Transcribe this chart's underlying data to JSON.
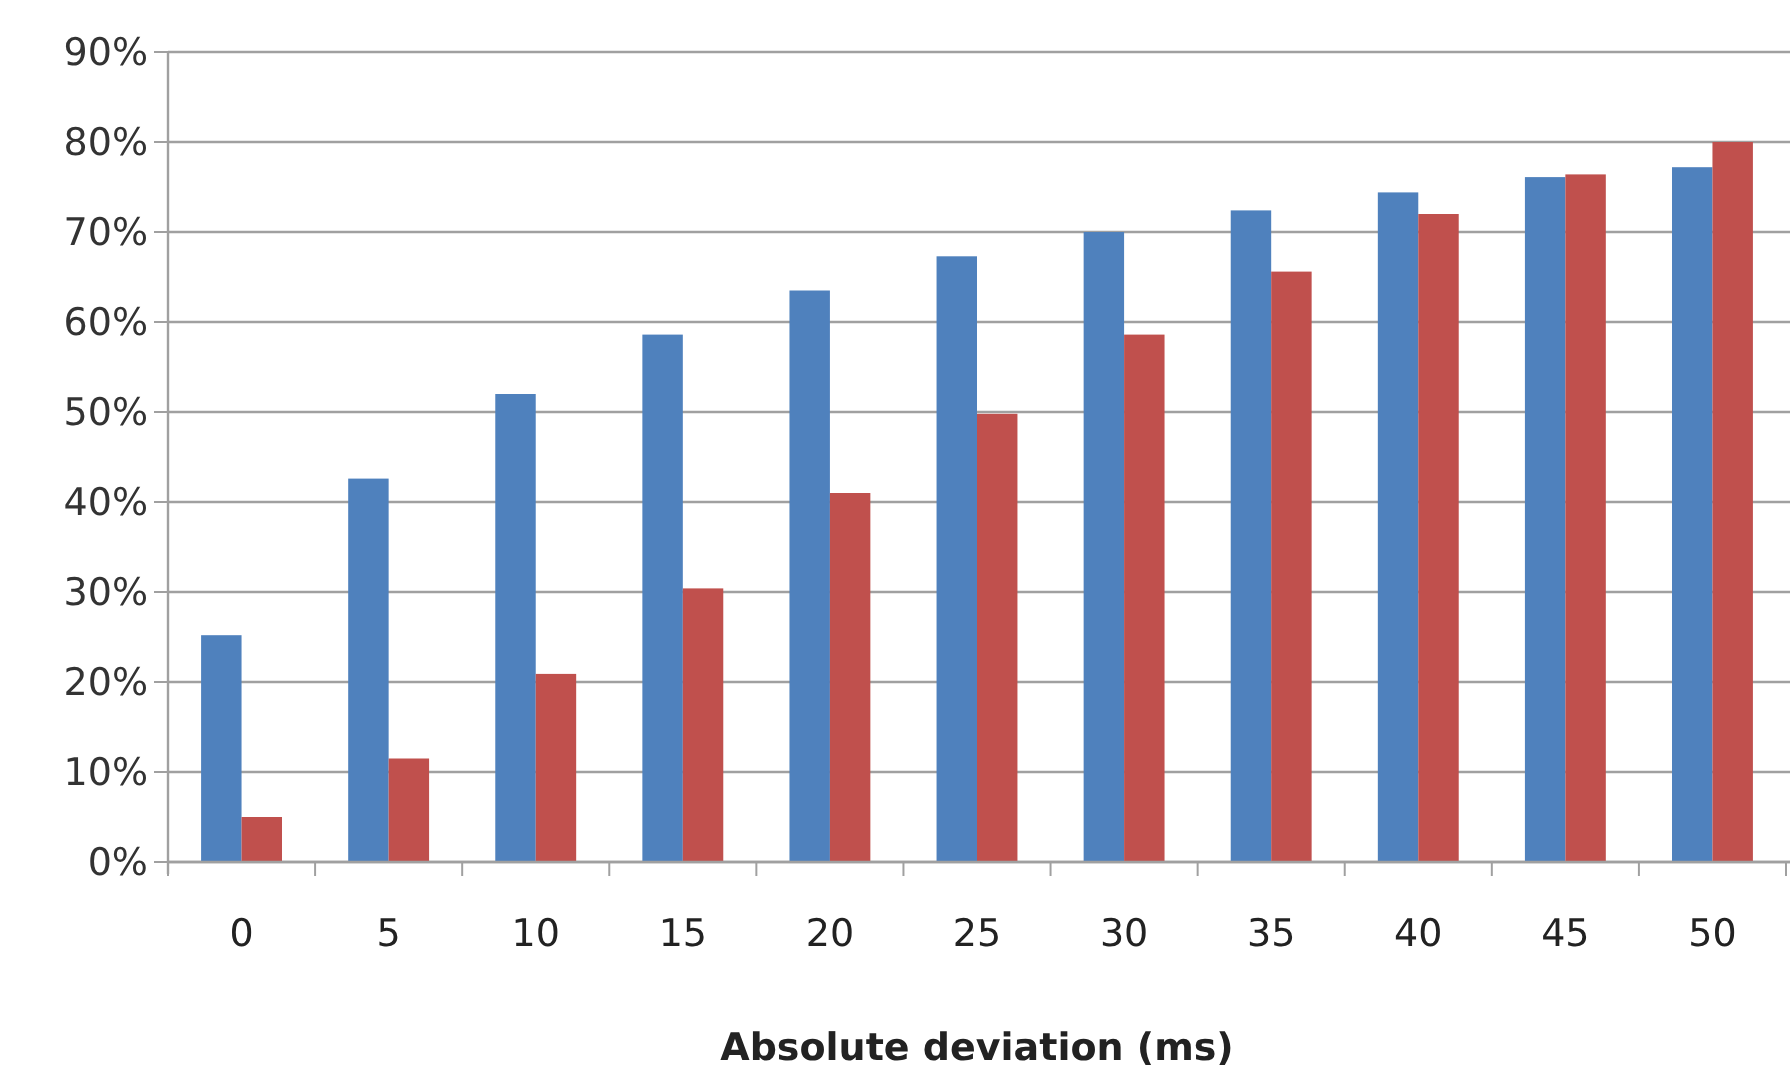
{
  "chart_data": {
    "type": "bar",
    "xlabel": "Absolute deviation (ms)",
    "categories": [
      "0",
      "5",
      "10",
      "15",
      "20",
      "25",
      "30",
      "35",
      "40",
      "45",
      "50"
    ],
    "series": [
      {
        "color": "#4f81bd",
        "values": [
          25.2,
          42.6,
          52.0,
          58.6,
          63.5,
          67.3,
          70.0,
          72.4,
          74.4,
          76.1,
          77.2
        ]
      },
      {
        "color": "#c0504d",
        "values": [
          5.0,
          11.5,
          20.9,
          30.4,
          41.0,
          49.8,
          58.6,
          65.6,
          72.0,
          76.4,
          80.0
        ]
      }
    ],
    "ylim": [
      0,
      90
    ],
    "yticks": [
      {
        "value": 0,
        "label": "0%"
      },
      {
        "value": 10,
        "label": "10%"
      },
      {
        "value": 20,
        "label": "20%"
      },
      {
        "value": 30,
        "label": "30%"
      },
      {
        "value": 40,
        "label": "40%"
      },
      {
        "value": 50,
        "label": "50%"
      },
      {
        "value": 60,
        "label": "60%"
      },
      {
        "value": 70,
        "label": "70%"
      },
      {
        "value": 80,
        "label": "80%"
      },
      {
        "value": 90,
        "label": "90%"
      }
    ],
    "grid": "y"
  }
}
